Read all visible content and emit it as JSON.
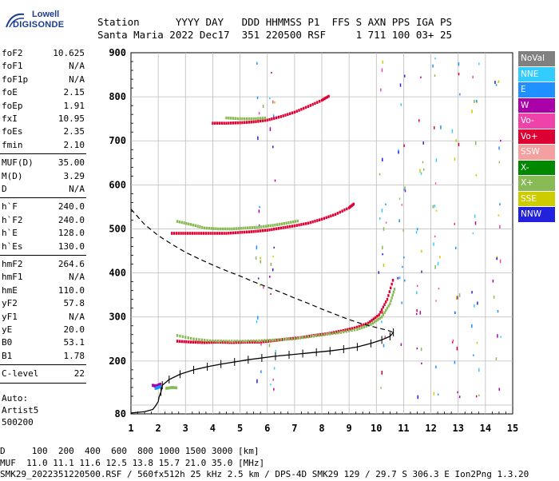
{
  "logo": {
    "line1": "Lowell",
    "line2": "DIGISONDE"
  },
  "header": {
    "row1": "Station      YYYY DAY   DDD HHMMSS P1  FFS S AXN PPS IGA PS",
    "row2": "Santa Maria 2022 Dec17  351 220500 RSF     1 711 100 03+ 25"
  },
  "params": {
    "group1": [
      {
        "k": "foF2",
        "v": "10.625"
      },
      {
        "k": "foF1",
        "v": "N/A"
      },
      {
        "k": "foF1p",
        "v": "N/A"
      },
      {
        "k": "foE",
        "v": "2.15"
      },
      {
        "k": "foEp",
        "v": "1.91"
      },
      {
        "k": "fxI",
        "v": "10.95"
      },
      {
        "k": "foEs",
        "v": "2.35"
      },
      {
        "k": "fmin",
        "v": "2.10"
      }
    ],
    "group2": [
      {
        "k": "MUF(D)",
        "v": "35.00"
      },
      {
        "k": "M(D)",
        "v": "3.29"
      },
      {
        "k": "D",
        "v": "N/A"
      }
    ],
    "group3": [
      {
        "k": "h`F",
        "v": "240.0"
      },
      {
        "k": "h`F2",
        "v": "240.0"
      },
      {
        "k": "h`E",
        "v": "128.0"
      },
      {
        "k": "h`Es",
        "v": "130.0"
      }
    ],
    "group4": [
      {
        "k": "hmF2",
        "v": "264.6"
      },
      {
        "k": "hmF1",
        "v": "N/A"
      },
      {
        "k": "hmE",
        "v": "110.0"
      },
      {
        "k": "yF2",
        "v": "57.8"
      },
      {
        "k": "yF1",
        "v": "N/A"
      },
      {
        "k": "yE",
        "v": "20.0"
      },
      {
        "k": "B0",
        "v": "53.1"
      },
      {
        "k": "B1",
        "v": "1.78"
      }
    ],
    "group5": [
      {
        "k": "C-level",
        "v": "22"
      }
    ],
    "auto": [
      "Auto:",
      "Artist5",
      "500200"
    ]
  },
  "legend": [
    {
      "label": "NoVal",
      "color": "#808080"
    },
    {
      "label": "NNE",
      "color": "#33ccff"
    },
    {
      "label": "E",
      "color": "#1e90ff"
    },
    {
      "label": "W",
      "color": "#aa00aa"
    },
    {
      "label": "Vo-",
      "color": "#ee44aa"
    },
    {
      "label": "Vo+",
      "color": "#dd0033"
    },
    {
      "label": "SSW",
      "color": "#f4a0a0"
    },
    {
      "label": "X-",
      "color": "#008800"
    },
    {
      "label": "X+",
      "color": "#88bb55"
    },
    {
      "label": "SSE",
      "color": "#cccc00"
    },
    {
      "label": "NNW",
      "color": "#2222dd"
    }
  ],
  "footer": {
    "line1": "D     100  200  400  600  800 1000 1500 3000 [km]",
    "line2": "MUF  11.0 11.1 11.6 12.5 13.8 15.7 21.0 35.0 [MHz]",
    "line3": "SMK29_2022351220500.RSF / 560fx512h 25 kHz 2.5 km / DPS-4D SMK29 129 / 29.7 S 306.3 E Ion2Png 1.3.20"
  },
  "chart_data": {
    "type": "scatter",
    "xlim": [
      1,
      15
    ],
    "ylim": [
      80,
      900
    ],
    "x_ticks": [
      1,
      2,
      3,
      4,
      5,
      6,
      7,
      8,
      9,
      10,
      11,
      12,
      13,
      14,
      15
    ],
    "y_ticks": [
      80,
      100,
      200,
      300,
      400,
      500,
      600,
      700,
      800,
      900
    ],
    "y_tick_labels": [
      "80",
      "",
      "200",
      "300",
      "400",
      "500",
      "600",
      "700",
      "800",
      "900"
    ],
    "grid": true,
    "series": [
      {
        "color": "#dd0033",
        "points": [
          [
            2.7,
            245
          ],
          [
            3.2,
            243
          ],
          [
            3.7,
            242
          ],
          [
            4.2,
            243
          ],
          [
            4.7,
            242
          ],
          [
            5.2,
            243
          ],
          [
            5.7,
            243
          ],
          [
            6.2,
            246
          ],
          [
            6.7,
            250
          ],
          [
            7.2,
            253
          ],
          [
            7.7,
            258
          ],
          [
            8.2,
            262
          ],
          [
            8.7,
            268
          ],
          [
            9.2,
            275
          ],
          [
            9.7,
            286
          ],
          [
            10.1,
            305
          ],
          [
            10.4,
            340
          ],
          [
            10.65,
            392
          ]
        ]
      },
      {
        "color": "#88bb55",
        "points": [
          [
            2.7,
            258
          ],
          [
            3.3,
            250
          ],
          [
            3.9,
            246
          ],
          [
            4.5,
            245
          ],
          [
            5.1,
            245
          ],
          [
            5.7,
            246
          ],
          [
            6.3,
            248
          ],
          [
            6.9,
            250
          ],
          [
            7.5,
            255
          ],
          [
            8.1,
            260
          ],
          [
            8.7,
            265
          ],
          [
            9.3,
            272
          ],
          [
            9.8,
            283
          ],
          [
            10.2,
            300
          ],
          [
            10.5,
            330
          ],
          [
            10.7,
            370
          ]
        ]
      },
      {
        "color": "#dd0033",
        "points": [
          [
            2.5,
            490
          ],
          [
            3.0,
            490
          ],
          [
            3.5,
            490
          ],
          [
            4.0,
            490
          ],
          [
            4.5,
            490
          ],
          [
            5.0,
            492
          ],
          [
            5.5,
            494
          ],
          [
            6.0,
            497
          ],
          [
            6.5,
            502
          ],
          [
            7.0,
            507
          ],
          [
            7.5,
            513
          ],
          [
            8.0,
            522
          ],
          [
            8.5,
            533
          ],
          [
            9.0,
            548
          ],
          [
            9.2,
            558
          ]
        ]
      },
      {
        "color": "#88bb55",
        "points": [
          [
            2.7,
            517
          ],
          [
            3.2,
            510
          ],
          [
            3.7,
            502
          ],
          [
            4.2,
            500
          ],
          [
            4.7,
            500
          ],
          [
            5.2,
            502
          ],
          [
            5.7,
            504
          ],
          [
            6.2,
            508
          ],
          [
            6.7,
            513
          ],
          [
            7.2,
            519
          ]
        ]
      },
      {
        "color": "#dd0033",
        "points": [
          [
            4.0,
            740
          ],
          [
            4.5,
            740
          ],
          [
            5.0,
            741
          ],
          [
            5.5,
            743
          ],
          [
            6.0,
            747
          ],
          [
            6.5,
            755
          ],
          [
            7.0,
            765
          ],
          [
            7.5,
            778
          ],
          [
            8.0,
            792
          ],
          [
            8.3,
            803
          ]
        ]
      },
      {
        "color": "#88bb55",
        "points": [
          [
            4.5,
            752
          ],
          [
            5.0,
            750
          ],
          [
            5.5,
            750
          ],
          [
            6.0,
            752
          ]
        ]
      },
      {
        "color": "#aa00aa",
        "points": [
          [
            1.8,
            145
          ],
          [
            1.9,
            143
          ],
          [
            2.0,
            145
          ],
          [
            2.1,
            148
          ]
        ]
      },
      {
        "color": "#1e90ff",
        "points": [
          [
            1.9,
            138
          ],
          [
            2.0,
            140
          ],
          [
            2.1,
            142
          ]
        ]
      },
      {
        "color": "#88bb55",
        "points": [
          [
            2.3,
            138
          ],
          [
            2.5,
            140
          ],
          [
            2.7,
            139
          ]
        ]
      }
    ],
    "profile": [
      [
        1.0,
        82
      ],
      [
        1.5,
        85
      ],
      [
        1.8,
        90
      ],
      [
        1.9,
        98
      ],
      [
        2.0,
        108
      ],
      [
        2.03,
        118
      ],
      [
        2.1,
        130
      ],
      [
        2.15,
        145
      ],
      [
        2.4,
        158
      ],
      [
        2.8,
        170
      ],
      [
        3.3,
        180
      ],
      [
        3.8,
        187
      ],
      [
        4.3,
        193
      ],
      [
        4.8,
        198
      ],
      [
        5.3,
        203
      ],
      [
        5.8,
        207
      ],
      [
        6.3,
        211
      ],
      [
        6.8,
        214
      ],
      [
        7.3,
        217
      ],
      [
        7.8,
        220
      ],
      [
        8.3,
        223
      ],
      [
        8.8,
        227
      ],
      [
        9.3,
        232
      ],
      [
        9.8,
        240
      ],
      [
        10.2,
        248
      ],
      [
        10.5,
        256
      ],
      [
        10.625,
        265
      ]
    ],
    "dashed_profile": [
      [
        1.0,
        545
      ],
      [
        1.5,
        510
      ],
      [
        2.0,
        485
      ],
      [
        2.5,
        465
      ],
      [
        3.0,
        447
      ],
      [
        3.5,
        432
      ],
      [
        4.0,
        418
      ],
      [
        4.5,
        405
      ],
      [
        5.0,
        393
      ],
      [
        5.5,
        380
      ],
      [
        6.0,
        368
      ],
      [
        6.5,
        356
      ],
      [
        7.0,
        343
      ],
      [
        7.5,
        331
      ],
      [
        8.0,
        318
      ],
      [
        8.5,
        306
      ],
      [
        9.0,
        294
      ],
      [
        9.5,
        284
      ],
      [
        10.0,
        276
      ],
      [
        10.4,
        270
      ],
      [
        10.625,
        265
      ]
    ]
  }
}
